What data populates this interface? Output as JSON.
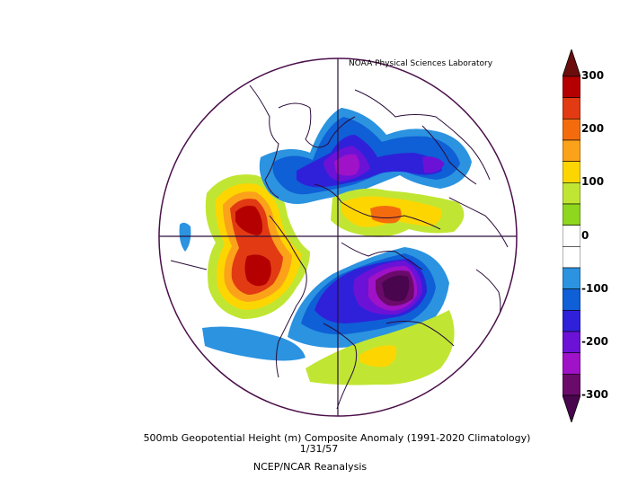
{
  "credit": "NOAA Physical Sciences Laboratory",
  "title": {
    "line1": "500mb Geopotential Height (m) Composite Anomaly (1991-2020 Climatology)",
    "line2": "1/31/57",
    "line3": "NCEP/NCAR Reanalysis"
  },
  "colorbar": {
    "ticks": [
      "300",
      "200",
      "100",
      "0",
      "-100",
      "-200",
      "-300"
    ],
    "colors": [
      "#6b0d0d",
      "#b40000",
      "#e23a13",
      "#f46b0e",
      "#fba21a",
      "#fdd602",
      "#c0e633",
      "#8fd61e",
      "#ffffff",
      "#ffffff",
      "#2b93e0",
      "#0f5fd6",
      "#2f21d9",
      "#6c12d6",
      "#a012c7",
      "#6a0a6a",
      "#49054d"
    ]
  },
  "map": {
    "projection": "north-polar-stereographic",
    "boundary_color": "#4a0f4a",
    "coastline_color": "#2b0d3a"
  }
}
